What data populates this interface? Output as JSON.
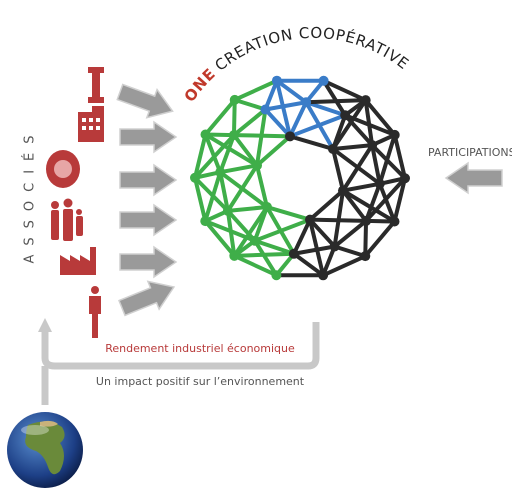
{
  "header": {
    "one": "ONE",
    "title": "CREATION COOPÉRATIVE"
  },
  "side_label": "ASSOCIÉS",
  "participations": "PARTICIPATIONS",
  "flows": {
    "return": "Rendement industriel économique",
    "impact": "Un impact positif sur l’environnement"
  }
}
